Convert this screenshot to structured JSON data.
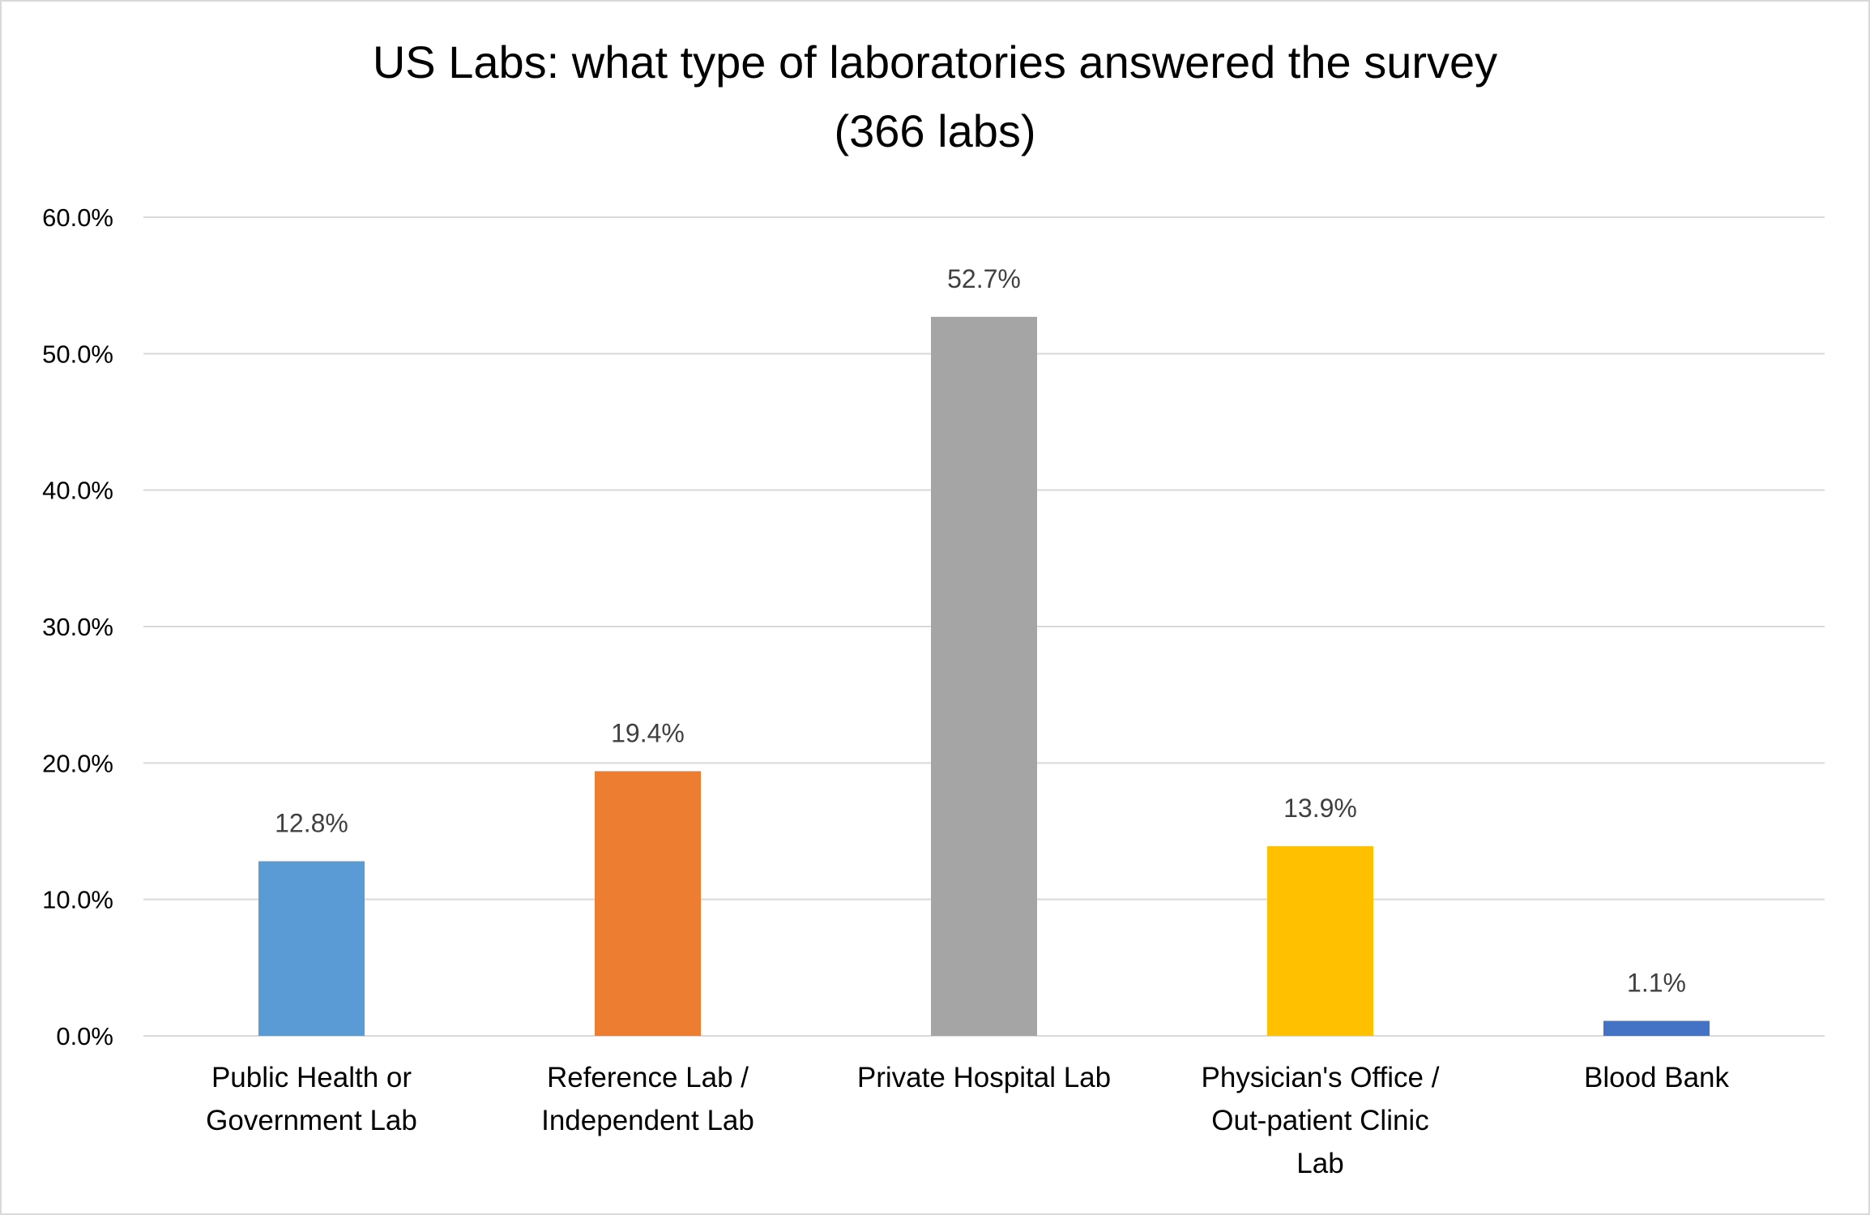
{
  "chart_data": {
    "type": "bar",
    "title": [
      "US Labs: what type of laboratories answered the survey",
      "(366 labs)"
    ],
    "xlabel": "",
    "ylabel": "",
    "ylim": [
      0,
      60
    ],
    "yticks": [
      "0.0%",
      "10.0%",
      "20.0%",
      "30.0%",
      "40.0%",
      "50.0%",
      "60.0%"
    ],
    "grid": true,
    "legend": "none",
    "categories": [
      [
        "Public Health or",
        "Government Lab"
      ],
      [
        "Reference Lab /",
        "Independent Lab"
      ],
      [
        "Private Hospital Lab"
      ],
      [
        "Physician's Office /",
        "Out-patient Clinic",
        "Lab"
      ],
      [
        "Blood Bank"
      ]
    ],
    "values": [
      12.8,
      19.4,
      52.7,
      13.9,
      1.1
    ],
    "data_labels": [
      "12.8%",
      "19.4%",
      "52.7%",
      "13.9%",
      "1.1%"
    ],
    "colors": [
      "#5B9BD5",
      "#ED7D31",
      "#A5A5A5",
      "#FFC000",
      "#4472C4"
    ]
  }
}
